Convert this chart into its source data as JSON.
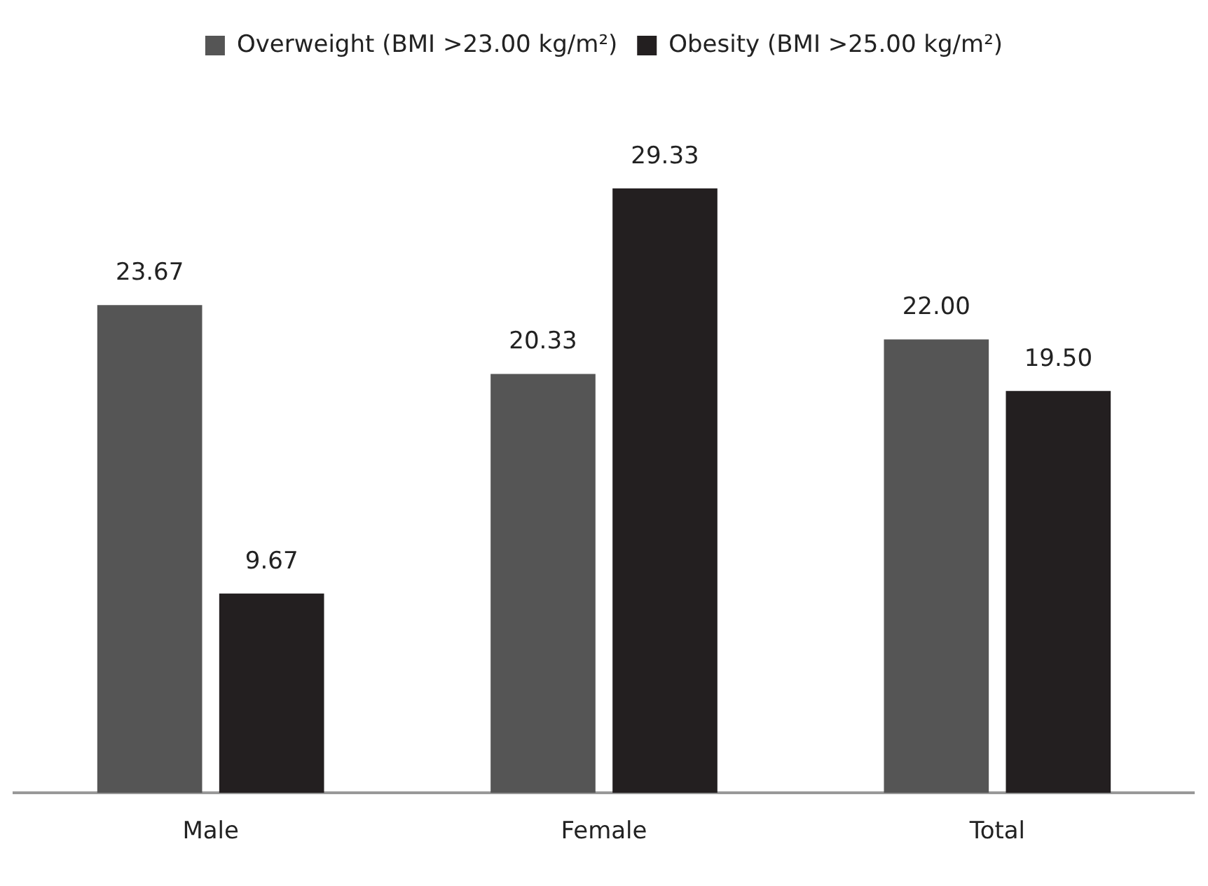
{
  "chart_data": {
    "type": "bar",
    "categories": [
      "Male",
      "Female",
      "Total"
    ],
    "series": [
      {
        "name": "Overweight (BMI >23.00 kg/m²)",
        "color": "#555555",
        "values": [
          23.67,
          20.33,
          22.0
        ],
        "value_labels": [
          "23.67",
          "20.33",
          "22.00"
        ]
      },
      {
        "name": "Obesity (BMI >25.00 kg/m²)",
        "color": "#231f20",
        "values": [
          9.67,
          29.33,
          19.5
        ],
        "value_labels": [
          "9.67",
          "29.33",
          "19.50"
        ]
      }
    ],
    "legend": "top",
    "grid": false,
    "tick_labels": "x"
  }
}
